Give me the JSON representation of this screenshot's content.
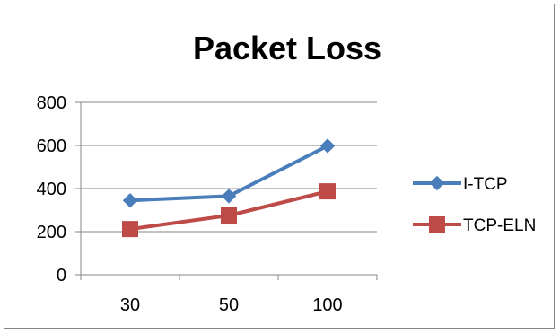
{
  "chart_data": {
    "type": "line",
    "title": "Packet Loss",
    "xlabel": "",
    "ylabel": "",
    "categories": [
      "30",
      "50",
      "100"
    ],
    "ylim": [
      0,
      800
    ],
    "yticks": [
      "0",
      "200",
      "400",
      "600",
      "800"
    ],
    "grid": true,
    "legend_position": "right",
    "series": [
      {
        "name": "I-TCP",
        "values": [
          345,
          365,
          598
        ],
        "color": "#4A7EBB",
        "marker": "diamond"
      },
      {
        "name": "TCP-ELN",
        "values": [
          212,
          275,
          387
        ],
        "color": "#BE4B48",
        "marker": "square"
      }
    ]
  }
}
